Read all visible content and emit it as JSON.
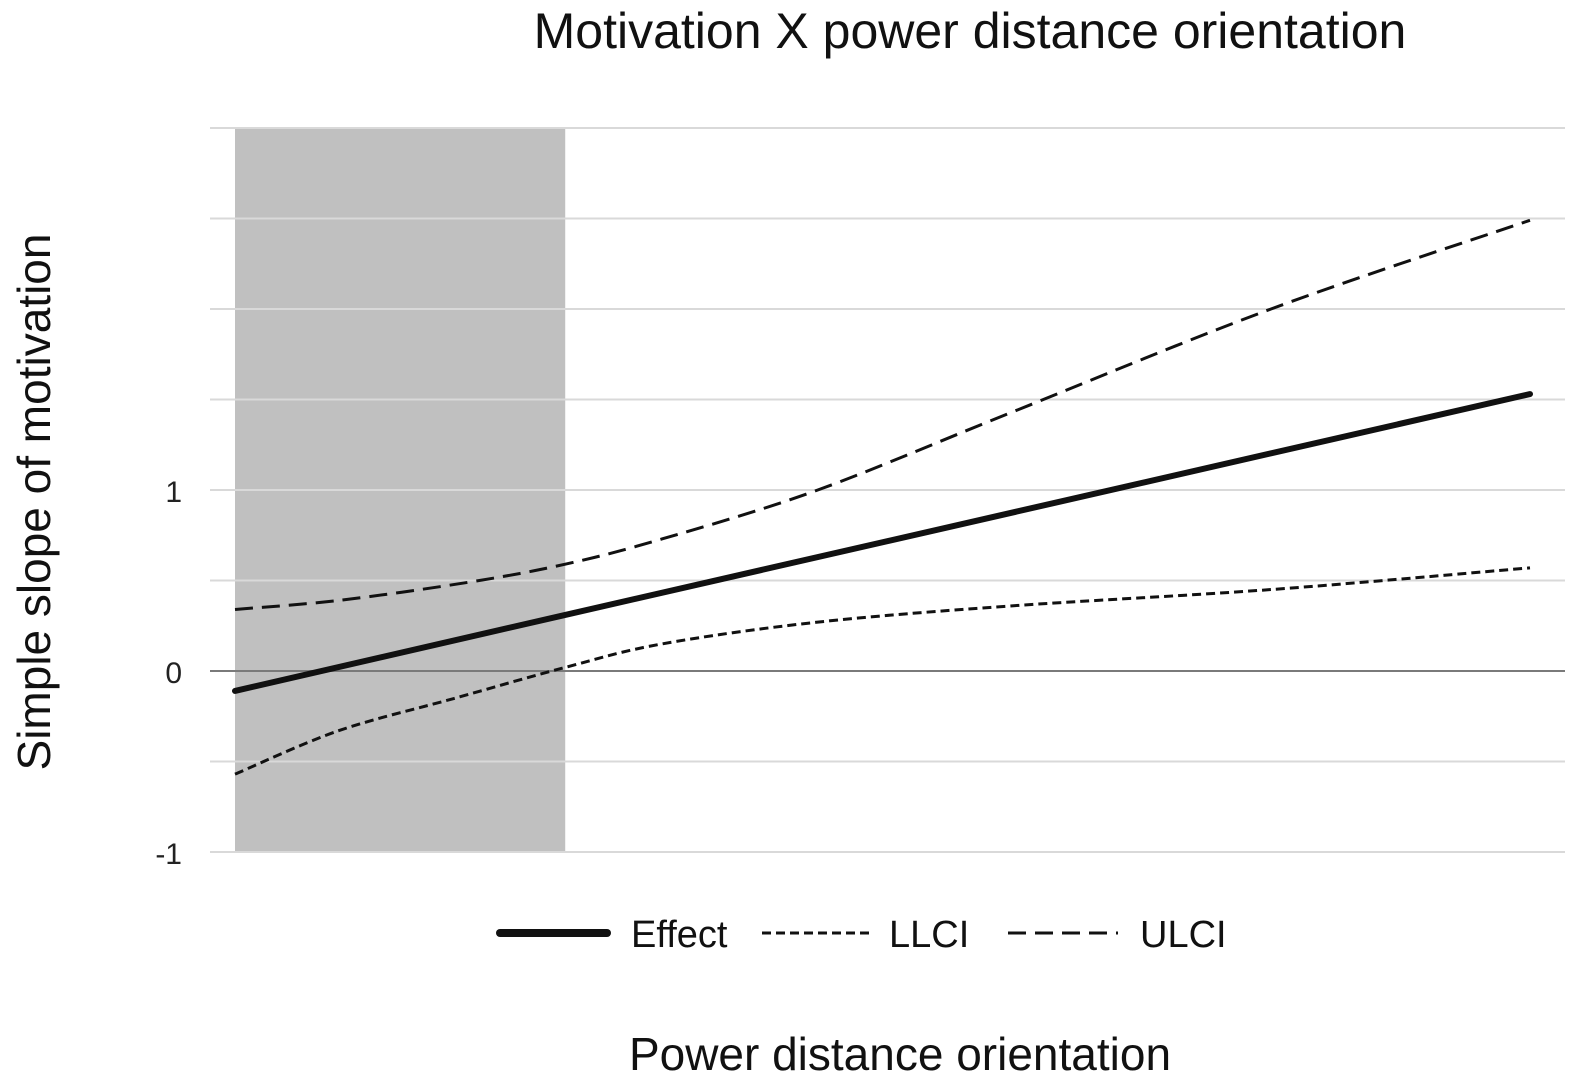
{
  "chart_data": {
    "type": "line",
    "title": "Motivation X power distance orientation",
    "xlabel": "Power distance orientation",
    "ylabel": "Simple slope of motivation",
    "xlim": [
      0,
      1
    ],
    "ylim": [
      -1,
      3
    ],
    "y_gridlines": [
      -1,
      -0.5,
      0,
      0.5,
      1,
      1.5,
      2,
      2.5,
      3
    ],
    "y_ticks": [
      {
        "value": -1,
        "label": "-1"
      },
      {
        "value": 0,
        "label": "0"
      },
      {
        "value": 1,
        "label": "1"
      }
    ],
    "shaded_region": {
      "x_start": 0,
      "x_end": 0.255
    },
    "legend_position": "bottom-center",
    "series": [
      {
        "name": "Effect",
        "style": "solid",
        "color": "#111111",
        "x": [
          0,
          0.255,
          1
        ],
        "y": [
          -0.11,
          0.31,
          1.53
        ]
      },
      {
        "name": "LLCI",
        "style": "short-dash",
        "color": "#111111",
        "x": [
          0,
          0.08,
          0.17,
          0.255,
          0.33,
          0.45,
          0.6,
          0.8,
          1
        ],
        "y": [
          -0.57,
          -0.33,
          -0.15,
          0.02,
          0.15,
          0.27,
          0.36,
          0.45,
          0.57
        ]
      },
      {
        "name": "ULCI",
        "style": "long-dash",
        "color": "#111111",
        "x": [
          0,
          0.08,
          0.18,
          0.255,
          0.33,
          0.45,
          0.6,
          0.8,
          1
        ],
        "y": [
          0.34,
          0.39,
          0.49,
          0.59,
          0.73,
          1.0,
          1.43,
          2.0,
          2.49
        ]
      }
    ]
  }
}
